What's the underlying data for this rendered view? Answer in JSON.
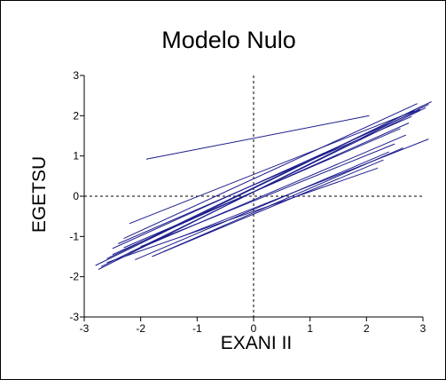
{
  "chart_data": {
    "type": "line",
    "title": "Modelo Nulo",
    "xlabel": "EXANI II",
    "ylabel": "EGETSU",
    "xlim": [
      -3,
      3
    ],
    "ylim": [
      -3,
      3
    ],
    "x_ticks": [
      "-3",
      "-2",
      "-1",
      "0",
      "1",
      "2",
      "3"
    ],
    "y_ticks": [
      "-3",
      "-2",
      "-1",
      "0",
      "1",
      "2",
      "3"
    ],
    "reference_lines": {
      "x": 0,
      "y": 0,
      "style": "dashed"
    },
    "grid": false,
    "legend": "none",
    "line_color": "#1c1c8c",
    "series": [
      {
        "x": [
          -1.9,
          2.05
        ],
        "y": [
          0.92,
          2.0
        ]
      },
      {
        "x": [
          -2.8,
          3.15
        ],
        "y": [
          -1.72,
          2.35
        ]
      },
      {
        "x": [
          -2.75,
          3.1
        ],
        "y": [
          -1.82,
          2.28
        ]
      },
      {
        "x": [
          -2.7,
          3.05
        ],
        "y": [
          -1.75,
          2.2
        ]
      },
      {
        "x": [
          -2.6,
          3.0
        ],
        "y": [
          -1.55,
          2.25
        ]
      },
      {
        "x": [
          -2.5,
          2.95
        ],
        "y": [
          -1.3,
          2.15
        ]
      },
      {
        "x": [
          -2.3,
          2.9
        ],
        "y": [
          -1.05,
          2.3
        ]
      },
      {
        "x": [
          -2.2,
          2.85
        ],
        "y": [
          -0.68,
          2.12
        ]
      },
      {
        "x": [
          -2.4,
          2.8
        ],
        "y": [
          -1.18,
          1.98
        ]
      },
      {
        "x": [
          -2.5,
          2.75
        ],
        "y": [
          -1.45,
          1.82
        ]
      },
      {
        "x": [
          -2.3,
          2.6
        ],
        "y": [
          -1.28,
          1.68
        ]
      },
      {
        "x": [
          -2.2,
          2.7
        ],
        "y": [
          -1.4,
          1.52
        ]
      },
      {
        "x": [
          -2.0,
          2.5
        ],
        "y": [
          -1.25,
          1.3
        ]
      },
      {
        "x": [
          -2.1,
          2.4
        ],
        "y": [
          -1.58,
          1.1
        ]
      },
      {
        "x": [
          -1.8,
          2.3
        ],
        "y": [
          -1.5,
          0.9
        ]
      },
      {
        "x": [
          -1.3,
          3.1
        ],
        "y": [
          -1.02,
          1.42
        ]
      },
      {
        "x": [
          -2.6,
          2.2
        ],
        "y": [
          -1.65,
          0.7
        ]
      },
      {
        "x": [
          -1.6,
          2.65
        ],
        "y": [
          -1.38,
          1.2
        ]
      }
    ]
  }
}
